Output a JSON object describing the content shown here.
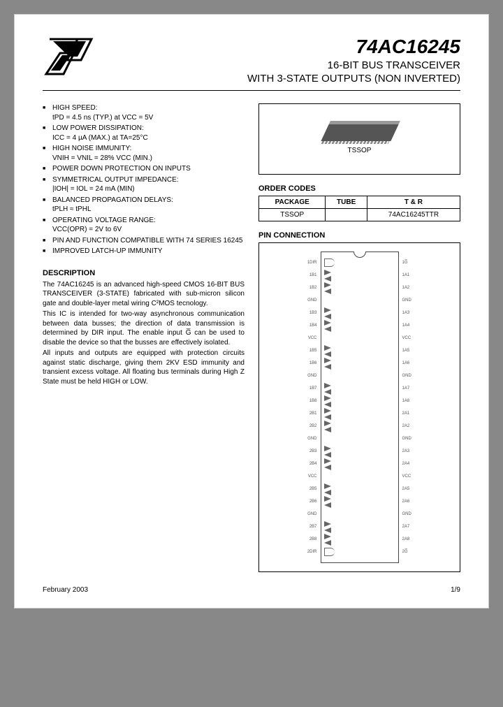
{
  "header": {
    "part_number": "74AC16245",
    "title_line1": "16-BIT BUS TRANSCEIVER",
    "title_line2": "WITH 3-STATE OUTPUTS (NON INVERTED)"
  },
  "features": [
    "HIGH SPEED:\ntPD = 4.5 ns (TYP.) at VCC = 5V",
    "LOW POWER DISSIPATION:\nICC = 4 µA (MAX.) at TA=25°C",
    "HIGH NOISE IMMUNITY:\nVNIH = VNIL = 28% VCC (MIN.)",
    "POWER DOWN PROTECTION ON INPUTS",
    "SYMMETRICAL OUTPUT IMPEDANCE:\n|IOH| = IOL = 24 mA (MIN)",
    "BALANCED PROPAGATION DELAYS:\ntPLH ≈ tPHL",
    "OPERATING VOLTAGE RANGE:\nVCC(OPR) = 2V to 6V",
    "PIN AND FUNCTION COMPATIBLE WITH 74 SERIES 16245",
    "IMPROVED LATCH-UP IMMUNITY"
  ],
  "description": {
    "heading": "DESCRIPTION",
    "p1": "The 74AC16245 is an advanced high-speed CMOS 16-BIT BUS TRANSCEIVER (3-STATE) fabricated with sub-micron silicon gate and double-layer metal wiring C²MOS tecnology.",
    "p2": "This IC is intended for two-way asynchronous communication between data busses; the direction of data transmission is determined by DIR input. The enable input G̅ can be used to disable the device so that the busses are effectively isolated.",
    "p3": "All inputs and outputs are equipped with protection circuits against static discharge, giving them 2KV ESD immunity and transient excess voltage. All floating bus terminals during High Z State must be held HIGH or LOW."
  },
  "package_box": {
    "label": "TSSOP"
  },
  "order_codes": {
    "heading": "ORDER CODES",
    "cols": [
      "PACKAGE",
      "TUBE",
      "T & R"
    ],
    "rows": [
      [
        "TSSOP",
        "",
        "74AC16245TTR"
      ]
    ]
  },
  "pin_connection": {
    "heading": "PIN CONNECTION",
    "left_pins": [
      "1DIR",
      "1B1",
      "1B2",
      "GND",
      "1B3",
      "1B4",
      "VCC",
      "1B5",
      "1B6",
      "GND",
      "1B7",
      "1B8",
      "2B1",
      "2B2",
      "GND",
      "2B3",
      "2B4",
      "VCC",
      "2B5",
      "2B6",
      "GND",
      "2B7",
      "2B8",
      "2DIR"
    ],
    "right_pins": [
      "1G̅",
      "1A1",
      "1A2",
      "GND",
      "1A3",
      "1A4",
      "VCC",
      "1A5",
      "1A6",
      "GND",
      "1A7",
      "1A8",
      "2A1",
      "2A2",
      "GND",
      "2A3",
      "2A4",
      "VCC",
      "2A5",
      "2A6",
      "GND",
      "2A7",
      "2A8",
      "2G̅"
    ]
  },
  "footer": {
    "date": "February 2003",
    "page": "1/9"
  }
}
